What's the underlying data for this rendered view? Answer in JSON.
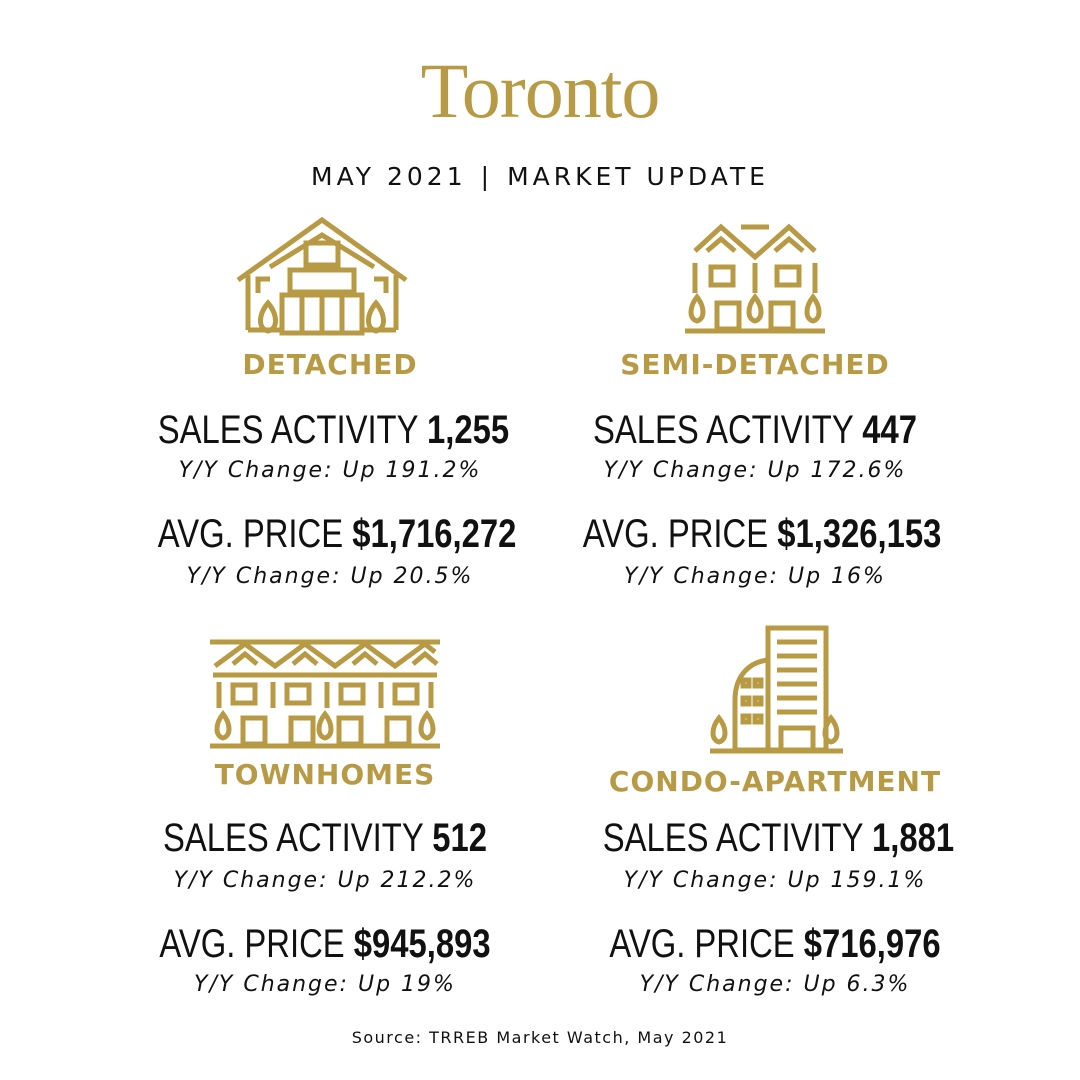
{
  "header": {
    "title": "Toronto",
    "month": "MAY 2021",
    "separator": "|",
    "label": "MARKET UPDATE"
  },
  "accent_color": "#b89a44",
  "categories": [
    {
      "name": "DETACHED",
      "icon": "detached-house-icon",
      "sales_label": "SALES ACTIVITY",
      "sales_value": "1,255",
      "sales_change": "Y/Y Change: Up 191.2%",
      "price_label": "AVG. PRICE",
      "price_value": "$1,716,272",
      "price_change": "Y/Y Change: Up 20.5%"
    },
    {
      "name": "SEMI-DETACHED",
      "icon": "semi-detached-house-icon",
      "sales_label": "SALES ACTIVITY",
      "sales_value": "447",
      "sales_change": "Y/Y Change: Up 172.6%",
      "price_label": "AVG. PRICE",
      "price_value": "$1,326,153",
      "price_change": "Y/Y Change: Up 16%"
    },
    {
      "name": "TOWNHOMES",
      "icon": "townhomes-icon",
      "sales_label": "SALES ACTIVITY",
      "sales_value": "512",
      "sales_change": "Y/Y Change: Up 212.2%",
      "price_label": "AVG. PRICE",
      "price_value": "$945,893",
      "price_change": "Y/Y Change: Up 19%"
    },
    {
      "name": "CONDO-APARTMENT",
      "icon": "condo-building-icon",
      "sales_label": "SALES ACTIVITY",
      "sales_value": "1,881",
      "sales_change": "Y/Y Change: Up 159.1%",
      "price_label": "AVG. PRICE",
      "price_value": "$716,976",
      "price_change": "Y/Y Change: Up 6.3%"
    }
  ],
  "source": "Source: TRREB Market Watch, May 2021"
}
